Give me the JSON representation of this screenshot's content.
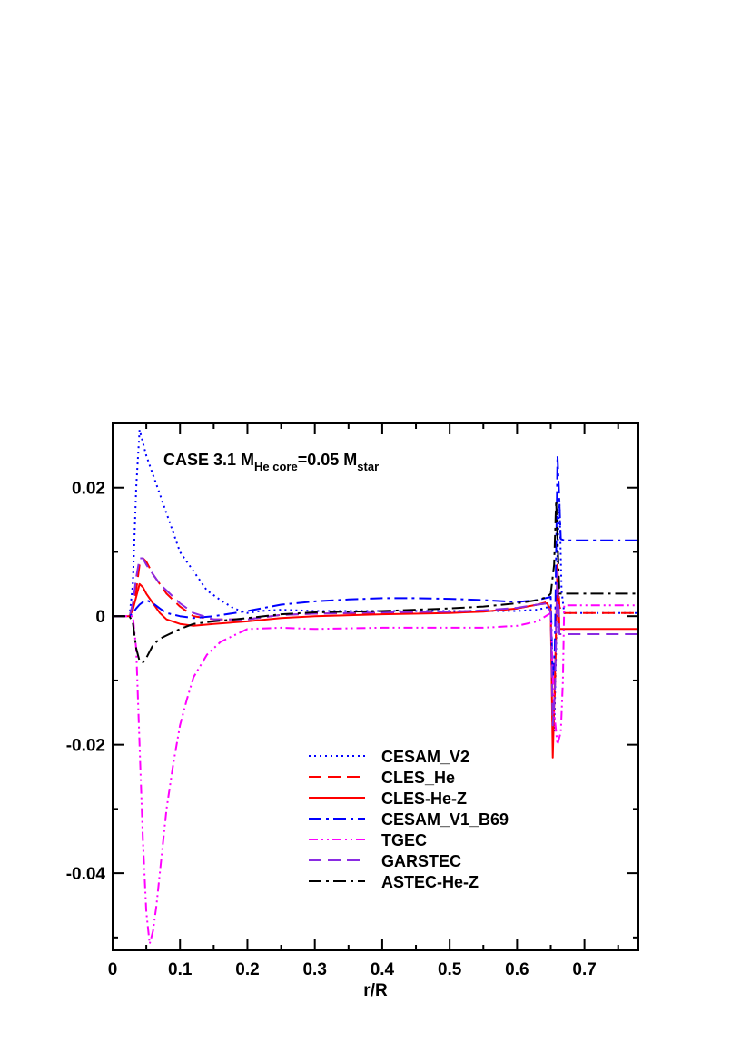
{
  "chart_data": {
    "type": "line",
    "title": "",
    "annotation": {
      "main": "CASE 3.1 M",
      "sub1": "He core",
      "mid": "=0.05 M",
      "sub2": "star"
    },
    "xlabel": "r/R",
    "ylabel": "",
    "xlim": [
      0,
      0.78
    ],
    "ylim": [
      -0.052,
      0.03
    ],
    "xticks": [
      0,
      0.1,
      0.2,
      0.3,
      0.4,
      0.5,
      0.6,
      0.7
    ],
    "xtick_labels": [
      "0",
      "0.1",
      "0.2",
      "0.3",
      "0.4",
      "0.5",
      "0.6",
      "0.7"
    ],
    "yticks": [
      -0.04,
      -0.02,
      0,
      0.02
    ],
    "ytick_labels": [
      "-0.04",
      "-0.02",
      "0",
      "0.02"
    ],
    "grid": false,
    "legend_position": "bottom-right",
    "series": [
      {
        "name": "CESAM_V2",
        "color": "#0000ff",
        "dash": "dotted",
        "x": [
          0,
          0.025,
          0.03,
          0.035,
          0.04,
          0.045,
          0.05,
          0.06,
          0.07,
          0.08,
          0.09,
          0.1,
          0.12,
          0.14,
          0.16,
          0.18,
          0.2,
          0.22,
          0.25,
          0.3,
          0.4,
          0.5,
          0.55,
          0.6,
          0.63,
          0.65,
          0.652,
          0.655,
          0.658,
          0.66,
          0.663,
          0.666,
          0.67,
          0.78
        ],
        "y": [
          0,
          0,
          0.005,
          0.02,
          0.029,
          0.027,
          0.025,
          0.022,
          0.019,
          0.016,
          0.013,
          0.01,
          0.007,
          0.004,
          0.0025,
          0.0012,
          0.0005,
          0.0008,
          0.001,
          0.0008,
          0.0008,
          0.0008,
          0.0008,
          0.0008,
          0.001,
          0.0015,
          -0.01,
          -0.018,
          -0.005,
          0.01,
          0.018,
          0.004,
          0.0005,
          0.0005
        ]
      },
      {
        "name": "CLES_He",
        "color": "#ff0000",
        "dash": "dashed",
        "x": [
          0,
          0.025,
          0.03,
          0.035,
          0.04,
          0.045,
          0.05,
          0.06,
          0.07,
          0.08,
          0.1,
          0.12,
          0.15,
          0.2,
          0.25,
          0.3,
          0.4,
          0.5,
          0.55,
          0.6,
          0.63,
          0.645,
          0.65,
          0.653,
          0.656,
          0.66,
          0.663,
          0.667,
          0.78
        ],
        "y": [
          0,
          0,
          0.001,
          0.004,
          0.008,
          0.009,
          0.0085,
          0.0065,
          0.005,
          0.0035,
          0.0015,
          0.0,
          -0.0005,
          -0.0005,
          0.0002,
          0.0004,
          0.0005,
          0.0006,
          0.0008,
          0.0012,
          0.0018,
          0.0022,
          0.001,
          -0.018,
          -0.012,
          0.008,
          0.0015,
          0.0005,
          0.0005
        ]
      },
      {
        "name": "CLES-He-Z",
        "color": "#ff0000",
        "dash": "solid",
        "x": [
          0,
          0.025,
          0.03,
          0.035,
          0.04,
          0.045,
          0.05,
          0.06,
          0.07,
          0.08,
          0.1,
          0.12,
          0.15,
          0.2,
          0.25,
          0.3,
          0.4,
          0.5,
          0.55,
          0.6,
          0.63,
          0.645,
          0.65,
          0.653,
          0.656,
          0.66,
          0.663,
          0.667,
          0.78
        ],
        "y": [
          0,
          0,
          0.001,
          0.003,
          0.005,
          0.0045,
          0.0035,
          0.002,
          0.0005,
          -0.0005,
          -0.0012,
          -0.0015,
          -0.0012,
          -0.0008,
          -0.0003,
          0.0,
          0.0003,
          0.0005,
          0.0007,
          0.0012,
          0.0018,
          0.002,
          0.0005,
          -0.022,
          -0.01,
          0.008,
          -0.002,
          -0.002,
          -0.002
        ]
      },
      {
        "name": "CESAM_V1_B69",
        "color": "#0000ff",
        "dash": "dashdot",
        "x": [
          0,
          0.025,
          0.03,
          0.035,
          0.04,
          0.045,
          0.05,
          0.06,
          0.07,
          0.08,
          0.1,
          0.12,
          0.15,
          0.2,
          0.22,
          0.25,
          0.3,
          0.35,
          0.4,
          0.45,
          0.5,
          0.55,
          0.6,
          0.63,
          0.65,
          0.653,
          0.656,
          0.66,
          0.662,
          0.665,
          0.67,
          0.78
        ],
        "y": [
          0,
          0,
          0.0005,
          0.0012,
          0.0018,
          0.0022,
          0.0025,
          0.002,
          0.0012,
          0.0005,
          0.0,
          -0.0003,
          0.0,
          0.0008,
          0.0012,
          0.0018,
          0.0023,
          0.0026,
          0.0028,
          0.0028,
          0.0027,
          0.0025,
          0.0022,
          0.0025,
          0.003,
          -0.01,
          -0.005,
          0.025,
          0.02,
          0.012,
          0.0118,
          0.0118
        ]
      },
      {
        "name": "TGEC",
        "color": "#ff00ff",
        "dash": "dashdotdot",
        "x": [
          0,
          0.025,
          0.03,
          0.035,
          0.04,
          0.045,
          0.05,
          0.055,
          0.06,
          0.065,
          0.07,
          0.08,
          0.09,
          0.1,
          0.11,
          0.12,
          0.14,
          0.16,
          0.18,
          0.2,
          0.25,
          0.3,
          0.4,
          0.5,
          0.55,
          0.6,
          0.63,
          0.65,
          0.655,
          0.66,
          0.665,
          0.668,
          0.67,
          0.78
        ],
        "y": [
          0,
          0,
          0,
          -0.005,
          -0.02,
          -0.035,
          -0.046,
          -0.051,
          -0.049,
          -0.045,
          -0.04,
          -0.03,
          -0.023,
          -0.017,
          -0.013,
          -0.0095,
          -0.006,
          -0.004,
          -0.003,
          -0.002,
          -0.0018,
          -0.002,
          -0.0018,
          -0.0018,
          -0.0018,
          -0.0015,
          -0.0008,
          0.0005,
          -0.015,
          -0.02,
          -0.018,
          -0.01,
          0.0017,
          0.0017
        ]
      },
      {
        "name": "GARSTEC",
        "color": "#8a2be2",
        "dash": "dashed",
        "x": [
          0,
          0.025,
          0.03,
          0.035,
          0.04,
          0.045,
          0.05,
          0.06,
          0.07,
          0.08,
          0.09,
          0.1,
          0.12,
          0.15,
          0.2,
          0.25,
          0.3,
          0.4,
          0.5,
          0.55,
          0.6,
          0.63,
          0.645,
          0.65,
          0.653,
          0.656,
          0.66,
          0.663,
          0.667,
          0.78
        ],
        "y": [
          0,
          0,
          0.002,
          0.006,
          0.009,
          0.009,
          0.008,
          0.0065,
          0.005,
          0.004,
          0.003,
          0.002,
          0.0005,
          -0.0005,
          -0.0005,
          0.0002,
          0.0004,
          0.0006,
          0.0007,
          0.0009,
          0.0013,
          0.0018,
          0.002,
          0.0005,
          -0.017,
          -0.012,
          0.007,
          -0.0028,
          -0.0028,
          -0.0028
        ]
      },
      {
        "name": "ASTEC-He-Z",
        "color": "#000000",
        "dash": "dashdot",
        "x": [
          0,
          0.025,
          0.03,
          0.035,
          0.04,
          0.045,
          0.05,
          0.06,
          0.07,
          0.08,
          0.1,
          0.12,
          0.15,
          0.2,
          0.25,
          0.3,
          0.4,
          0.5,
          0.55,
          0.6,
          0.63,
          0.645,
          0.65,
          0.655,
          0.658,
          0.66,
          0.663,
          0.667,
          0.78
        ],
        "y": [
          0,
          0,
          -0.001,
          -0.005,
          -0.007,
          -0.0072,
          -0.0065,
          -0.0045,
          -0.0035,
          -0.003,
          -0.002,
          -0.0012,
          -0.0008,
          -0.0003,
          0.0003,
          0.0006,
          0.0008,
          0.0012,
          0.0015,
          0.002,
          0.0025,
          0.003,
          0.0035,
          0.008,
          0.018,
          0.012,
          0.0035,
          0.0035,
          0.0035
        ]
      }
    ]
  }
}
